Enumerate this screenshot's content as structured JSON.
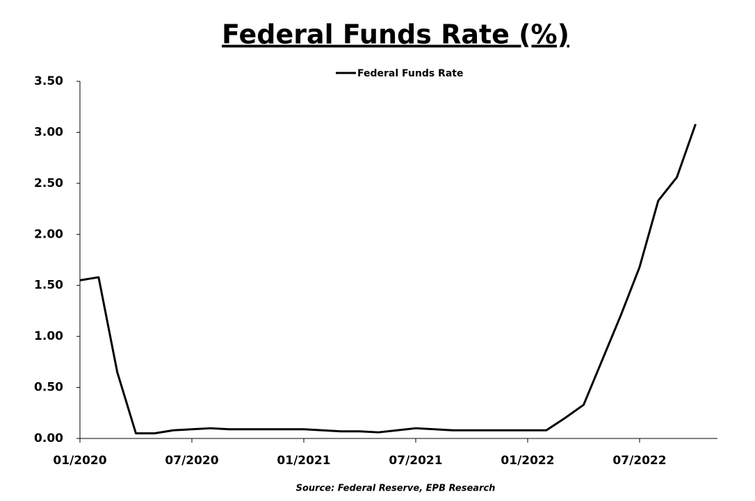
{
  "chart_data": {
    "type": "line",
    "title": "Federal Funds Rate (%)",
    "source": "Source: Federal Reserve, EPB Research",
    "categories": [
      "01/2020",
      null,
      null,
      null,
      null,
      null,
      "07/2020",
      null,
      null,
      null,
      null,
      null,
      "01/2021",
      null,
      null,
      null,
      null,
      null,
      "07/2021",
      null,
      null,
      null,
      null,
      null,
      "01/2022",
      null,
      null,
      null,
      null,
      null,
      "07/2022",
      null,
      null,
      null
    ],
    "series": [
      {
        "name": "Federal Funds Rate",
        "color": "#000000",
        "values": [
          1.55,
          1.58,
          0.65,
          0.05,
          0.05,
          0.08,
          0.09,
          0.1,
          0.09,
          0.09,
          0.09,
          0.09,
          0.09,
          0.08,
          0.07,
          0.07,
          0.06,
          0.08,
          0.1,
          0.09,
          0.08,
          0.08,
          0.08,
          0.08,
          0.08,
          0.08,
          0.2,
          0.33,
          0.77,
          1.21,
          1.68,
          2.33,
          2.56,
          3.08
        ]
      }
    ],
    "ylim": [
      0,
      3.5
    ],
    "yticks": [
      {
        "value": 0,
        "label": "0.00"
      },
      {
        "value": 0.5,
        "label": "0.50"
      },
      {
        "value": 1,
        "label": "1.00"
      },
      {
        "value": 1.5,
        "label": "1.50"
      },
      {
        "value": 2,
        "label": "2.00"
      },
      {
        "value": 2.5,
        "label": "2.50"
      },
      {
        "value": 3,
        "label": "3.00"
      },
      {
        "value": 3.5,
        "label": "3.50"
      }
    ],
    "grid": false,
    "legend": "top"
  }
}
